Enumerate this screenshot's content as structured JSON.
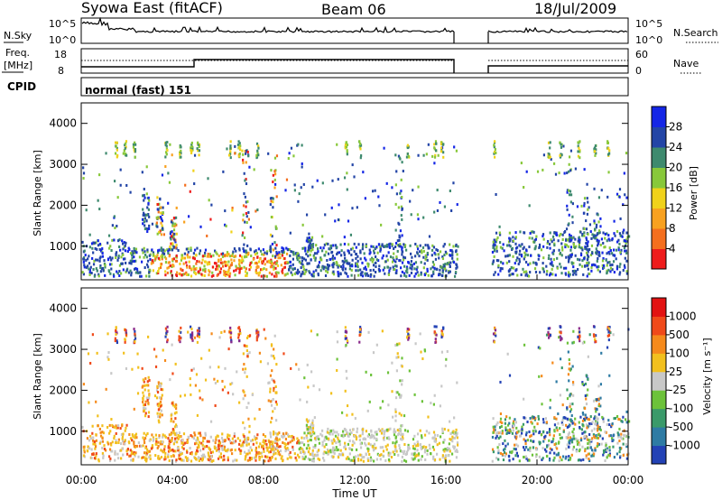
{
  "header": {
    "title": "Syowa East (fitACF)",
    "beam": "Beam 06",
    "date": "18/Jul/2009"
  },
  "status_panels": {
    "nsky_label": "N.Sky",
    "nsky_ticks": [
      "10^5",
      "10^0"
    ],
    "nsearch_label": "N.Search",
    "nsearch_ticks": [
      "10^5",
      "10^0"
    ],
    "freq_label_1": "Freq.",
    "freq_label_2": "[MHz]",
    "freq_ticks": [
      "18",
      "8"
    ],
    "nave_label": "Nave",
    "nave_ticks": [
      "60",
      "0"
    ],
    "cpid_label": "CPID",
    "cpid_value": "normal (fast) 151"
  },
  "chart_data": [
    {
      "type": "heatmap",
      "name": "power",
      "ylabel": "Slant Range [km]",
      "ylim": [
        180,
        4500
      ],
      "yticks": [
        "1000",
        "2000",
        "3000",
        "4000"
      ],
      "ytick_values": [
        1000,
        2000,
        3000,
        4000
      ],
      "colorbar_label": "Power [dB]",
      "colorbar_ticks": [
        "28",
        "24",
        "20",
        "16",
        "12",
        "8",
        "4"
      ],
      "colorbar_colors": [
        "#ee1c1c",
        "#f46f1e",
        "#f8a11f",
        "#f0d21a",
        "#88c83a",
        "#3e8a6e",
        "#2345a6",
        "#1426e6"
      ],
      "data_gap_hours": [
        16.5,
        18.0
      ]
    },
    {
      "type": "heatmap",
      "name": "velocity",
      "xlabel": "Time UT",
      "ylabel": "Slant Range [km]",
      "ylim": [
        180,
        4500
      ],
      "yticks": [
        "1000",
        "2000",
        "3000",
        "4000"
      ],
      "ytick_values": [
        1000,
        2000,
        3000,
        4000
      ],
      "xticks": [
        "00:00",
        "04:00",
        "08:00",
        "12:00",
        "16:00",
        "20:00",
        "00:00"
      ],
      "xtick_values": [
        0,
        4,
        8,
        12,
        16,
        20,
        24
      ],
      "xlim": [
        0,
        24
      ],
      "colorbar_label": "Velocity [m s⁻¹]",
      "colorbar_ticks": [
        "1000",
        "500",
        "100",
        "25",
        "-25",
        "-100",
        "-500",
        "-1000"
      ],
      "colorbar_colors": [
        "#2342b5",
        "#2e7ba4",
        "#3a9a6a",
        "#6cc23a",
        "#c8c8c8",
        "#f2c01e",
        "#f58a1c",
        "#f04a1a",
        "#e21212"
      ],
      "data_gap_hours": [
        16.5,
        18.0
      ]
    }
  ]
}
